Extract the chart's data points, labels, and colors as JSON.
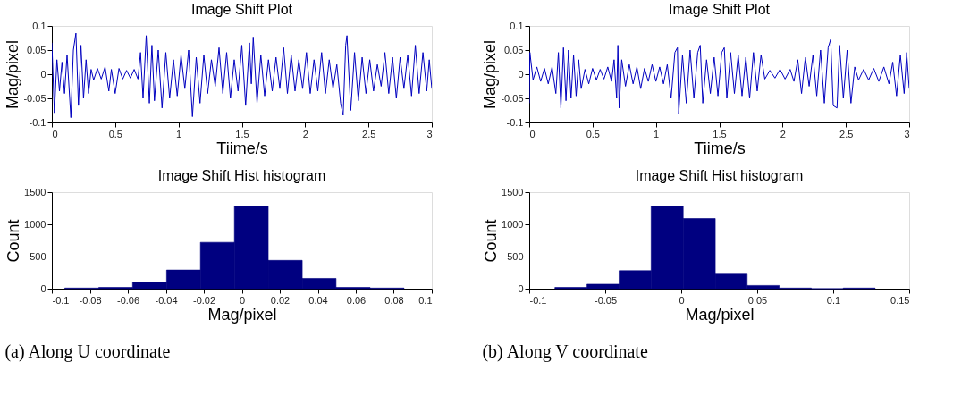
{
  "chart_data": [
    {
      "type": "line",
      "title": "Image Shift Plot",
      "xlabel": "Tiime/s",
      "ylabel": "Mag/pixel",
      "xlim": [
        0,
        3
      ],
      "xticks": [
        0,
        0.5,
        1,
        1.5,
        2,
        2.5,
        3
      ],
      "ylim": [
        -0.1,
        0.1
      ],
      "yticks": [
        -0.1,
        -0.05,
        0,
        0.05,
        0.1
      ],
      "grid": false,
      "x": [
        0,
        0.02,
        0.04,
        0.06,
        0.08,
        0.1,
        0.12,
        0.15,
        0.17,
        0.19,
        0.21,
        0.23,
        0.25,
        0.27,
        0.29,
        0.31,
        0.33,
        0.36,
        0.39,
        0.42,
        0.45,
        0.47,
        0.5,
        0.53,
        0.56,
        0.59,
        0.62,
        0.65,
        0.68,
        0.7,
        0.72,
        0.745,
        0.77,
        0.79,
        0.81,
        0.84,
        0.87,
        0.9,
        0.93,
        0.96,
        0.99,
        1.02,
        1.05,
        1.08,
        1.11,
        1.14,
        1.17,
        1.2,
        1.23,
        1.26,
        1.29,
        1.32,
        1.35,
        1.38,
        1.41,
        1.44,
        1.47,
        1.5,
        1.53,
        1.56,
        1.575,
        1.59,
        1.62,
        1.65,
        1.68,
        1.71,
        1.74,
        1.77,
        1.8,
        1.83,
        1.86,
        1.89,
        1.92,
        1.95,
        1.98,
        2.01,
        2.04,
        2.07,
        2.1,
        2.13,
        2.16,
        2.19,
        2.22,
        2.25,
        2.28,
        2.3,
        2.32,
        2.33,
        2.36,
        2.39,
        2.42,
        2.45,
        2.48,
        2.51,
        2.54,
        2.57,
        2.6,
        2.63,
        2.66,
        2.69,
        2.72,
        2.75,
        2.78,
        2.81,
        2.84,
        2.87,
        2.9,
        2.93,
        2.96,
        2.98,
        3
      ],
      "series": [
        {
          "color": "#0000c0",
          "values": [
            0.065,
            -0.08,
            0.03,
            -0.035,
            0.025,
            -0.04,
            0.04,
            -0.09,
            0.05,
            0.085,
            -0.065,
            0.06,
            -0.05,
            0.03,
            -0.04,
            0.01,
            -0.012,
            0.012,
            -0.01,
            0.015,
            -0.035,
            0.01,
            -0.04,
            0.012,
            -0.01,
            0.008,
            -0.008,
            0.01,
            -0.01,
            0.045,
            -0.05,
            0.08,
            -0.06,
            0.06,
            -0.055,
            0.05,
            -0.07,
            0.045,
            -0.05,
            0.03,
            -0.045,
            0.04,
            -0.03,
            0.05,
            -0.088,
            0.035,
            -0.06,
            0.04,
            -0.04,
            0.03,
            -0.025,
            0.055,
            -0.04,
            0.045,
            -0.05,
            0.03,
            -0.035,
            0.06,
            -0.065,
            0.065,
            -0.02,
            0.077,
            -0.06,
            0.04,
            -0.045,
            0.03,
            -0.035,
            0.035,
            -0.03,
            0.055,
            -0.04,
            0.04,
            -0.035,
            0.03,
            -0.03,
            0.045,
            -0.04,
            0.03,
            -0.035,
            0.045,
            -0.04,
            0.03,
            -0.03,
            0.02,
            -0.06,
            -0.085,
            0.06,
            0.08,
            -0.075,
            0.045,
            -0.055,
            0.035,
            -0.04,
            0.03,
            -0.035,
            0.02,
            -0.025,
            0.045,
            -0.04,
            0.035,
            -0.05,
            0.035,
            -0.03,
            0.04,
            -0.045,
            0.06,
            -0.04,
            0.045,
            -0.035,
            0.03,
            -0.03
          ]
        }
      ]
    },
    {
      "type": "histogram",
      "title": "Image Shift Hist histogram",
      "xlabel": "Mag/pixel",
      "ylabel": "Count",
      "xlim": [
        -0.1,
        0.1
      ],
      "xticks": [
        -0.1,
        -0.08,
        -0.06,
        -0.04,
        -0.02,
        0,
        0.02,
        0.04,
        0.06,
        0.08,
        0.1
      ],
      "ylim": [
        0,
        1500
      ],
      "yticks": [
        0,
        500,
        1000,
        1500
      ],
      "grid": false,
      "color": "#000080",
      "bins": [
        -0.0932,
        -0.0753,
        -0.0575,
        -0.0396,
        -0.0218,
        -0.0039,
        0.0139,
        0.0318,
        0.0496,
        0.0675,
        0.0854
      ],
      "values": [
        10,
        20,
        100,
        290,
        720,
        1280,
        440,
        160,
        20,
        10
      ],
      "annotations": [
        "(a) Along U coordinate"
      ]
    },
    {
      "type": "line",
      "title": "Image Shift Plot",
      "xlabel": "Tiime/s",
      "ylabel": "Mag/pixel",
      "xlim": [
        0,
        3
      ],
      "xticks": [
        0,
        0.5,
        1,
        1.5,
        2,
        2.5,
        3
      ],
      "ylim": [
        -0.1,
        0.1
      ],
      "yticks": [
        -0.1,
        -0.05,
        0,
        0.05,
        0.1
      ],
      "grid": false,
      "x": [
        0,
        0.005,
        0.03,
        0.06,
        0.09,
        0.12,
        0.15,
        0.18,
        0.21,
        0.23,
        0.25,
        0.27,
        0.29,
        0.31,
        0.33,
        0.35,
        0.37,
        0.39,
        0.41,
        0.44,
        0.47,
        0.5,
        0.53,
        0.56,
        0.59,
        0.62,
        0.65,
        0.67,
        0.69,
        0.7,
        0.71,
        0.73,
        0.76,
        0.79,
        0.82,
        0.85,
        0.88,
        0.91,
        0.94,
        0.97,
        1,
        1.03,
        1.06,
        1.09,
        1.12,
        1.15,
        1.17,
        1.18,
        1.21,
        1.24,
        1.27,
        1.3,
        1.33,
        1.35,
        1.37,
        1.4,
        1.43,
        1.46,
        1.49,
        1.52,
        1.54,
        1.56,
        1.59,
        1.62,
        1.65,
        1.68,
        1.71,
        1.74,
        1.77,
        1.8,
        1.83,
        1.86,
        1.9,
        1.94,
        1.98,
        2.02,
        2.06,
        2.09,
        2.12,
        2.15,
        2.18,
        2.21,
        2.24,
        2.27,
        2.3,
        2.33,
        2.36,
        2.38,
        2.4,
        2.43,
        2.45,
        2.48,
        2.51,
        2.54,
        2.57,
        2.6,
        2.64,
        2.68,
        2.72,
        2.76,
        2.8,
        2.84,
        2.87,
        2.9,
        2.93,
        2.96,
        2.98,
        3
      ],
      "series": [
        {
          "color": "#0000c0",
          "values": [
            -0.06,
            0.045,
            -0.012,
            0.015,
            -0.015,
            0.012,
            -0.02,
            0.015,
            -0.04,
            0.045,
            -0.07,
            0.055,
            -0.055,
            0.05,
            -0.05,
            0.04,
            -0.045,
            0.03,
            -0.03,
            0.01,
            -0.02,
            0.012,
            -0.012,
            0.01,
            -0.01,
            0.015,
            -0.015,
            0.03,
            -0.05,
            0.06,
            -0.07,
            0.03,
            -0.025,
            0.02,
            -0.02,
            0.015,
            -0.03,
            0.012,
            -0.015,
            0.02,
            -0.015,
            0.015,
            -0.02,
            0.02,
            -0.05,
            0.045,
            0.055,
            -0.082,
            0.04,
            -0.06,
            0.05,
            -0.05,
            0.045,
            0.06,
            -0.06,
            0.03,
            -0.04,
            0.035,
            -0.045,
            0.045,
            0.055,
            -0.05,
            0.045,
            -0.04,
            0.04,
            -0.045,
            0.035,
            -0.05,
            0.045,
            -0.035,
            0.04,
            -0.01,
            0.008,
            -0.008,
            0.01,
            -0.01,
            0.01,
            -0.015,
            0.03,
            -0.04,
            0.035,
            -0.025,
            0.04,
            -0.045,
            0.05,
            -0.06,
            0.055,
            0.072,
            -0.065,
            -0.07,
            0.06,
            -0.05,
            0.05,
            -0.06,
            0.015,
            -0.012,
            0.01,
            -0.012,
            0.012,
            -0.015,
            0.015,
            -0.02,
            0.025,
            -0.045,
            0.04,
            -0.04,
            0.045,
            -0.03
          ]
        }
      ]
    },
    {
      "type": "histogram",
      "title": "Image Shift Hist histogram",
      "xlabel": "Mag/pixel",
      "ylabel": "Count",
      "xlim": [
        -0.1,
        0.15
      ],
      "xticks": [
        -0.1,
        -0.05,
        0,
        0.05,
        0.1,
        0.15
      ],
      "ylim": [
        0,
        1500
      ],
      "yticks": [
        0,
        500,
        1000,
        1500
      ],
      "grid": false,
      "color": "#000080",
      "bins": [
        -0.0831,
        -0.062,
        -0.0409,
        -0.0198,
        0.0013,
        0.0224,
        0.0434,
        0.0645,
        0.0856,
        0.1066,
        0.1276
      ],
      "values": [
        20,
        70,
        280,
        1280,
        1090,
        240,
        50,
        10,
        0,
        10
      ],
      "annotations": [
        "(b) Along V coordinate"
      ]
    }
  ]
}
